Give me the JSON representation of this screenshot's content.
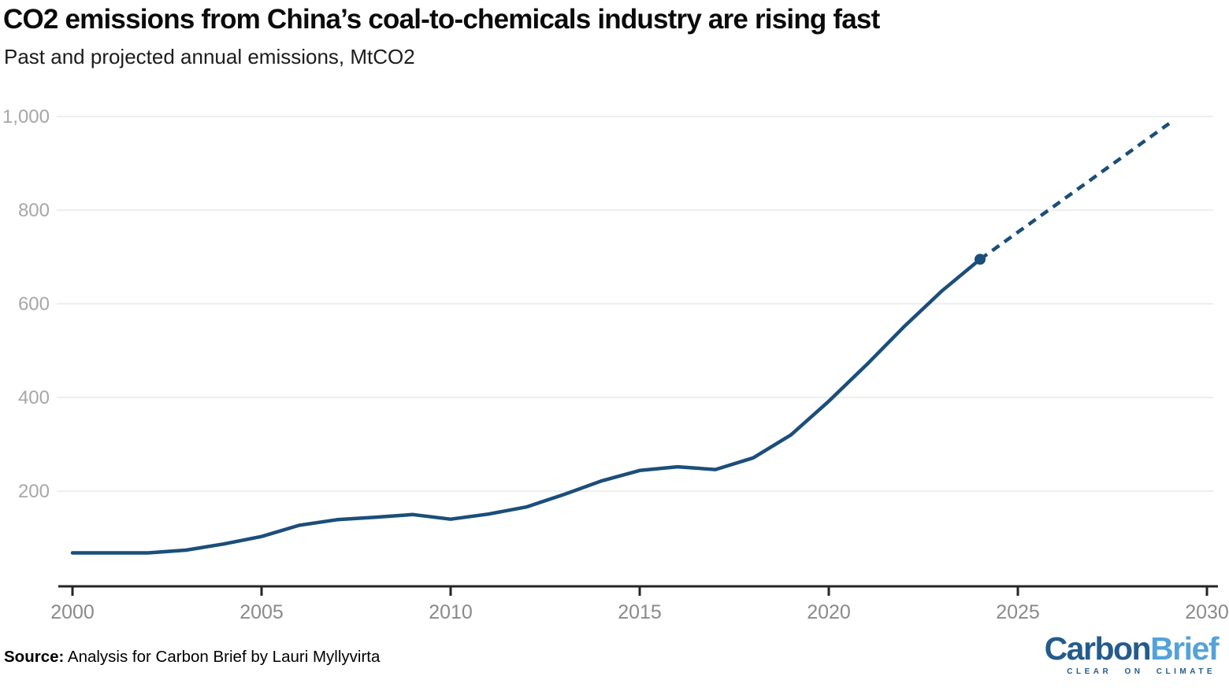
{
  "header": {
    "title": "CO2 emissions from China’s coal-to-chemicals industry are rising fast",
    "subtitle": "Past and projected annual emissions, MtCO2"
  },
  "chart_data": {
    "type": "line",
    "title": "CO2 emissions from China’s coal-to-chemicals industry are rising fast",
    "subtitle": "Past and projected annual emissions, MtCO2",
    "xlabel": "",
    "ylabel": "MtCO2",
    "xlim": [
      2000,
      2030
    ],
    "ylim": [
      0,
      1000
    ],
    "grid": "horizontal-only",
    "legend": "none",
    "line_color": "#1b4e7a",
    "y_axis": {
      "ticks": [
        {
          "value": 200,
          "label": "200"
        },
        {
          "value": 400,
          "label": "400"
        },
        {
          "value": 600,
          "label": "600"
        },
        {
          "value": 800,
          "label": "800"
        },
        {
          "value": 1000,
          "label": "1,000"
        }
      ]
    },
    "x_axis": {
      "ticks": [
        {
          "value": 2000,
          "label": "2000"
        },
        {
          "value": 2005,
          "label": "2005"
        },
        {
          "value": 2010,
          "label": "2010"
        },
        {
          "value": 2015,
          "label": "2015"
        },
        {
          "value": 2020,
          "label": "2020"
        },
        {
          "value": 2025,
          "label": "2025"
        },
        {
          "value": 2030,
          "label": "2030"
        }
      ]
    },
    "series": [
      {
        "name": "Past annual emissions",
        "style": "solid",
        "points": [
          [
            2000,
            68
          ],
          [
            2001,
            68
          ],
          [
            2002,
            68
          ],
          [
            2003,
            74
          ],
          [
            2004,
            87
          ],
          [
            2005,
            103
          ],
          [
            2006,
            127
          ],
          [
            2007,
            139
          ],
          [
            2008,
            144
          ],
          [
            2009,
            150
          ],
          [
            2010,
            140
          ],
          [
            2011,
            151
          ],
          [
            2012,
            166
          ],
          [
            2013,
            193
          ],
          [
            2014,
            222
          ],
          [
            2015,
            244
          ],
          [
            2016,
            252
          ],
          [
            2017,
            246
          ],
          [
            2018,
            271
          ],
          [
            2019,
            320
          ],
          [
            2020,
            392
          ],
          [
            2021,
            470
          ],
          [
            2022,
            552
          ],
          [
            2023,
            628
          ],
          [
            2024,
            695
          ]
        ]
      },
      {
        "name": "Projected annual emissions",
        "style": "dashed",
        "points": [
          [
            2024,
            695
          ],
          [
            2025,
            753
          ],
          [
            2026,
            811
          ],
          [
            2027,
            869
          ],
          [
            2028,
            927
          ],
          [
            2029,
            985
          ]
        ]
      }
    ],
    "marker": {
      "year": 2024,
      "value": 695
    }
  },
  "footer": {
    "source_label": "Source:",
    "source_text": "Analysis for Carbon Brief by Lauri Myllyvirta",
    "logo": {
      "part1": "Carbon",
      "part2": "Brief",
      "tagline": "CLEAR ON CLIMATE",
      "dark_color": "#245b8c",
      "light_color": "#55a2d8"
    }
  }
}
